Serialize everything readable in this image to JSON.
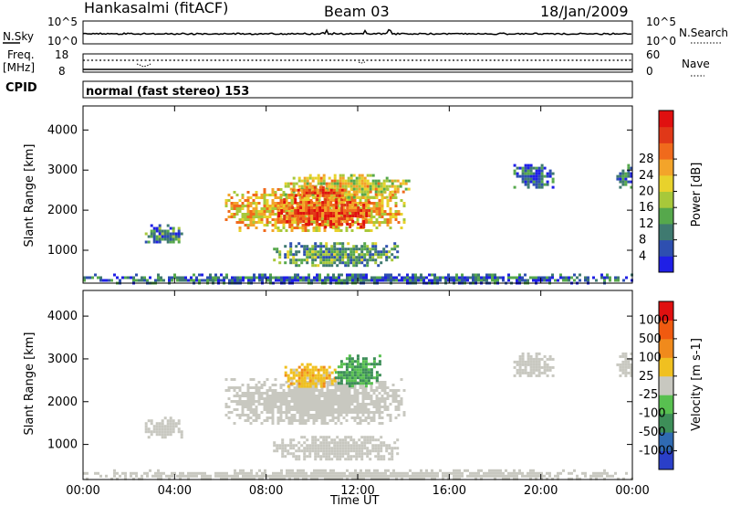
{
  "header": {
    "station": "Hankasalmi (fitACF)",
    "beam": "Beam 03",
    "date": "18/Jan/2009"
  },
  "status": {
    "nsky_label": "N.Sky",
    "nsearch_label": "N.Search",
    "nsky_ticks": [
      "10^5",
      "10^0"
    ],
    "freq_label": [
      "Freq.",
      "[MHz]"
    ],
    "freq_ticks": [
      "18",
      "8"
    ],
    "nave_label": "Nave",
    "nave_ticks": [
      "60",
      "0"
    ],
    "cpid_label": "CPID",
    "mode_text": "normal (fast stereo) 153"
  },
  "chart_data": [
    {
      "type": "heatmap",
      "title": "",
      "xlabel": "Time UT",
      "ylabel": "Slant Range [km]",
      "xlim": [
        0,
        24
      ],
      "ylim": [
        180,
        4600
      ],
      "x_ticks": [
        "00:00",
        "04:00",
        "08:00",
        "12:00",
        "16:00",
        "20:00",
        "00:00"
      ],
      "y_ticks": [
        "1000",
        "2000",
        "3000",
        "4000"
      ],
      "colorbar": {
        "label": "Power [dB]",
        "ticks": [
          "4",
          "8",
          "12",
          "16",
          "20",
          "24",
          "28"
        ],
        "range": [
          0,
          30
        ],
        "colors": [
          "#1f1fe6",
          "#2e4fb0",
          "#3f7a70",
          "#56a84c",
          "#a8c83a",
          "#e8d22c",
          "#f3a42a",
          "#f06a1c",
          "#e03818",
          "#e01010"
        ]
      },
      "echo_regions": [
        {
          "t": [
            0.0,
            24.0
          ],
          "r": [
            200,
            420
          ],
          "value": 6
        },
        {
          "t": [
            2.7,
            4.3
          ],
          "r": [
            1180,
            1650
          ],
          "value": 8
        },
        {
          "t": [
            6.2,
            14.0
          ],
          "r": [
            1500,
            2550
          ],
          "value": 18
        },
        {
          "t": [
            8.5,
            12.5
          ],
          "r": [
            1600,
            2300
          ],
          "value": 24
        },
        {
          "t": [
            8.8,
            14.3
          ],
          "r": [
            2350,
            2900
          ],
          "value": 16
        },
        {
          "t": [
            9.0,
            11.5
          ],
          "r": [
            2350,
            2600
          ],
          "value": 24
        },
        {
          "t": [
            8.3,
            13.8
          ],
          "r": [
            650,
            1200
          ],
          "value": 10
        },
        {
          "t": [
            18.8,
            20.5
          ],
          "r": [
            2600,
            3150
          ],
          "value": 6
        },
        {
          "t": [
            23.3,
            24.0
          ],
          "r": [
            2600,
            3150
          ],
          "value": 6
        }
      ]
    },
    {
      "type": "heatmap",
      "title": "",
      "xlabel": "Time UT",
      "ylabel": "Slant Range [km]",
      "xlim": [
        0,
        24
      ],
      "ylim": [
        180,
        4600
      ],
      "x_ticks": [
        "00:00",
        "04:00",
        "08:00",
        "12:00",
        "16:00",
        "20:00",
        "00:00"
      ],
      "y_ticks": [
        "1000",
        "2000",
        "3000",
        "4000"
      ],
      "colorbar": {
        "label": "Velocity [m s-1]",
        "ticks": [
          "1000",
          "500",
          "100",
          "25",
          "-25",
          "-100",
          "-500",
          "-1000"
        ],
        "range": [
          -1200,
          1200
        ],
        "colors": [
          "#2a3fc8",
          "#2f6ab2",
          "#3d8e58",
          "#58c050",
          "#c8c8c0",
          "#f0c020",
          "#f08a1c",
          "#f05a10",
          "#e01010"
        ]
      },
      "echo_regions": [
        {
          "t": [
            0.0,
            24.0
          ],
          "r": [
            200,
            420
          ],
          "value": 60
        },
        {
          "t": [
            2.7,
            4.3
          ],
          "r": [
            1180,
            1650
          ],
          "value": 0
        },
        {
          "t": [
            6.2,
            14.0
          ],
          "r": [
            1500,
            2550
          ],
          "value": 0
        },
        {
          "t": [
            8.8,
            11.0
          ],
          "r": [
            2350,
            2900
          ],
          "value": 300
        },
        {
          "t": [
            11.0,
            13.0
          ],
          "r": [
            2350,
            3100
          ],
          "value": -400
        },
        {
          "t": [
            8.3,
            13.8
          ],
          "r": [
            650,
            1200
          ],
          "value": 0
        },
        {
          "t": [
            18.8,
            20.5
          ],
          "r": [
            2600,
            3150
          ],
          "value": 0
        },
        {
          "t": [
            23.3,
            24.0
          ],
          "r": [
            2600,
            3150
          ],
          "value": 0
        }
      ]
    }
  ]
}
